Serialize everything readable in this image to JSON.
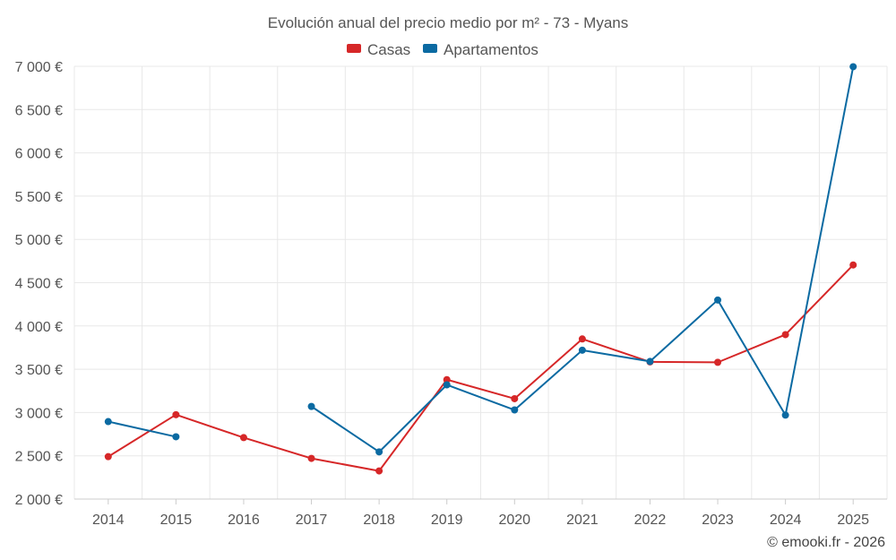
{
  "chart_data": {
    "type": "line",
    "title": "Evolución anual del precio medio por m² - 73 - Myans",
    "categories": [
      "2014",
      "2015",
      "2016",
      "2017",
      "2018",
      "2019",
      "2020",
      "2021",
      "2022",
      "2023",
      "2024",
      "2025"
    ],
    "ylim": [
      2000,
      7000
    ],
    "yticks": [
      2000,
      2500,
      3000,
      3500,
      4000,
      4500,
      5000,
      5500,
      6000,
      6500,
      7000
    ],
    "ytick_labels": [
      "2 000 €",
      "2 500 €",
      "3 000 €",
      "3 500 €",
      "4 000 €",
      "4 500 €",
      "5 000 €",
      "5 500 €",
      "6 000 €",
      "6 500 €",
      "7 000 €"
    ],
    "grid": true,
    "legend_position": "top-center",
    "series": [
      {
        "name": "Casas",
        "color": "#d62728",
        "values": [
          2490,
          2975,
          2710,
          2470,
          2325,
          3380,
          3160,
          3850,
          3585,
          3580,
          3900,
          4705
        ]
      },
      {
        "name": "Apartamentos",
        "color": "#0b6aa2",
        "values": [
          2895,
          2720,
          null,
          3070,
          2545,
          3320,
          3030,
          3720,
          3590,
          4300,
          2970,
          6995
        ]
      }
    ],
    "credit": "© emooki.fr - 2026"
  }
}
